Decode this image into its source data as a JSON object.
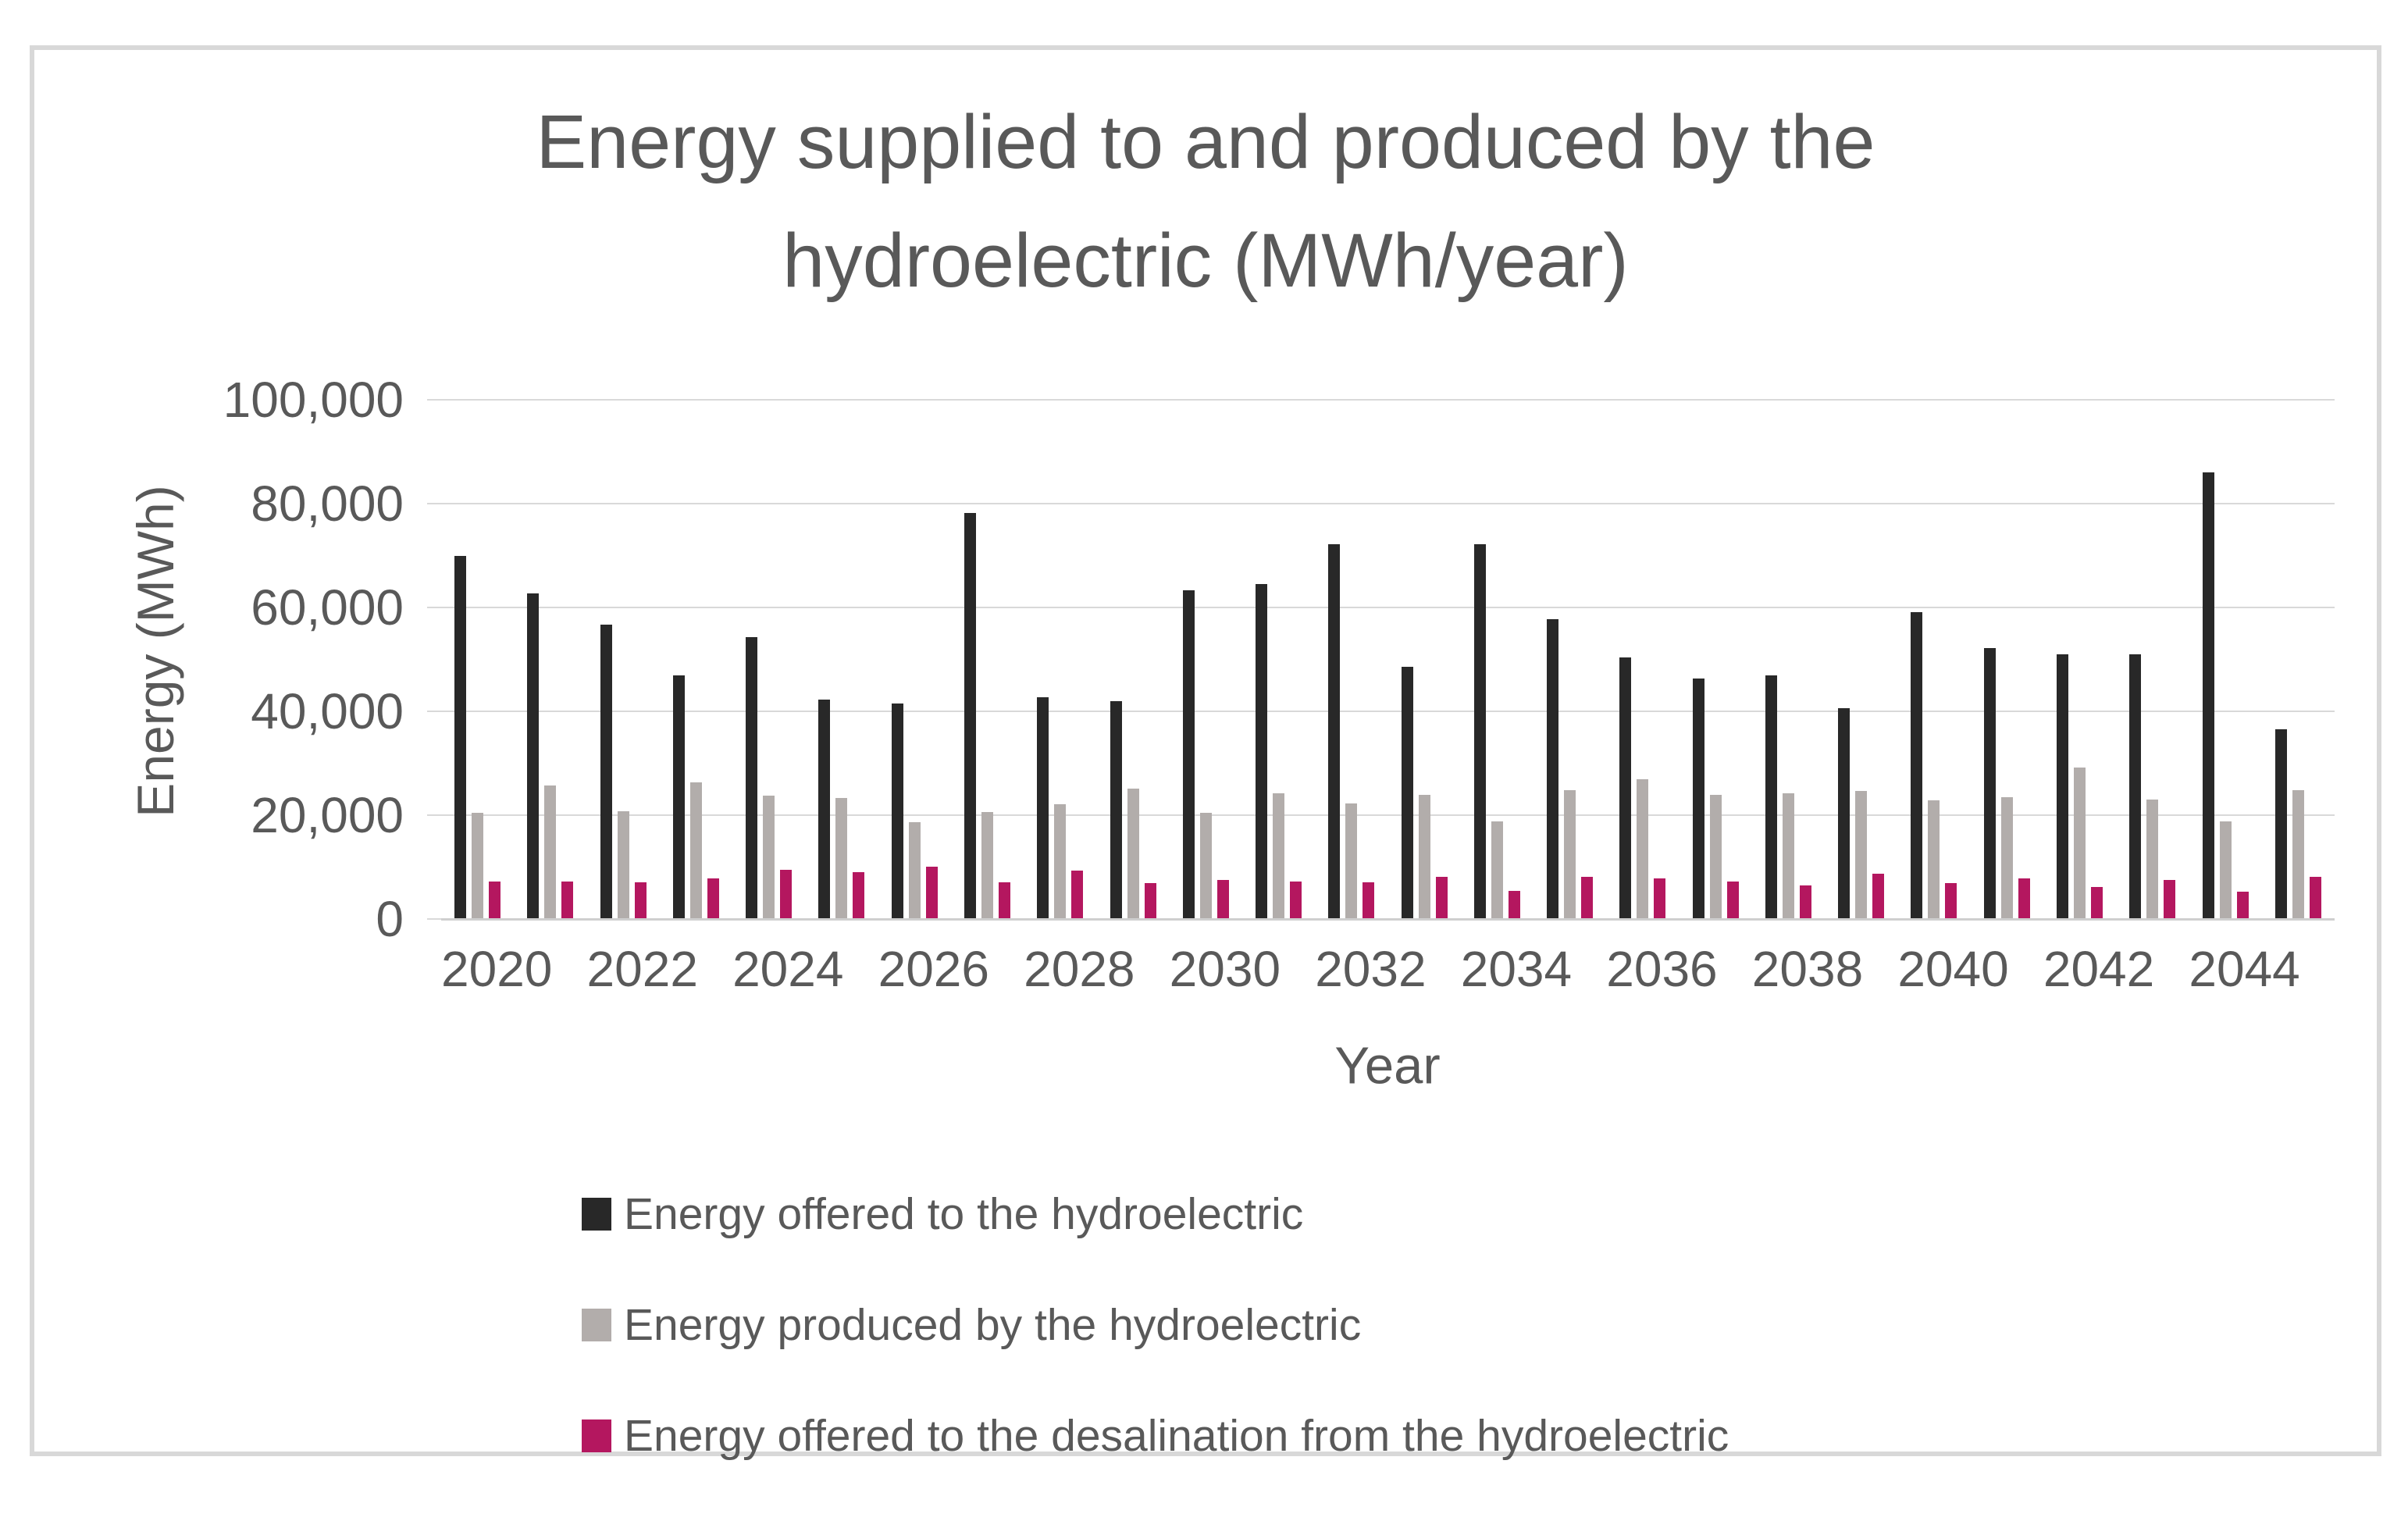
{
  "chart_data": {
    "type": "bar",
    "title": "Energy supplied to and produced by the hydroelectric (MWh/year)",
    "title_lines": [
      "Energy supplied to and produced by the",
      "hydroelectric (MWh/year)"
    ],
    "xlabel": "Year",
    "ylabel": "Energy (MWh)",
    "ylim": [
      0,
      100000
    ],
    "ytick_step": 20000,
    "ytick_labels": [
      "100,000",
      "80,000",
      "60,000",
      "40,000",
      "20,000",
      "0"
    ],
    "grid": true,
    "legend_position": "bottom-left",
    "categories": [
      2020,
      2021,
      2022,
      2023,
      2024,
      2025,
      2026,
      2027,
      2028,
      2029,
      2030,
      2031,
      2032,
      2033,
      2034,
      2035,
      2036,
      2037,
      2038,
      2039,
      2040,
      2041,
      2042,
      2043,
      2044,
      2045
    ],
    "xtick_labels": [
      "2020",
      "2022",
      "2024",
      "2026",
      "2028",
      "2030",
      "2032",
      "2034",
      "2036",
      "2038",
      "2040",
      "2042",
      "2044"
    ],
    "series": [
      {
        "name": "Energy offered to the hydroelectric",
        "color": "#282828",
        "values": [
          69800,
          62600,
          56600,
          46800,
          54100,
          42100,
          41300,
          78000,
          42600,
          41800,
          63200,
          64300,
          72100,
          48400,
          72000,
          57600,
          50300,
          46100,
          46800,
          40400,
          58900,
          52100,
          50900,
          50900,
          85900,
          36400
        ]
      },
      {
        "name": "Energy produced by the hydroelectric",
        "color": "#b2adab",
        "values": [
          20300,
          25500,
          20600,
          26100,
          23600,
          23100,
          18500,
          20500,
          22000,
          25000,
          20300,
          24000,
          22100,
          23800,
          18700,
          24600,
          26700,
          23700,
          24000,
          24500,
          22700,
          23300,
          29000,
          22900,
          18700,
          24600
        ]
      },
      {
        "name": "Energy offered to the desalination from the hydroelectric",
        "color": "#b4175f",
        "values": [
          7000,
          7000,
          6900,
          7600,
          9300,
          8800,
          9900,
          6900,
          9200,
          6800,
          7400,
          7000,
          6900,
          8000,
          5200,
          7900,
          7600,
          7000,
          6300,
          8500,
          6700,
          7600,
          6000,
          7300,
          5100,
          7900
        ]
      }
    ]
  }
}
